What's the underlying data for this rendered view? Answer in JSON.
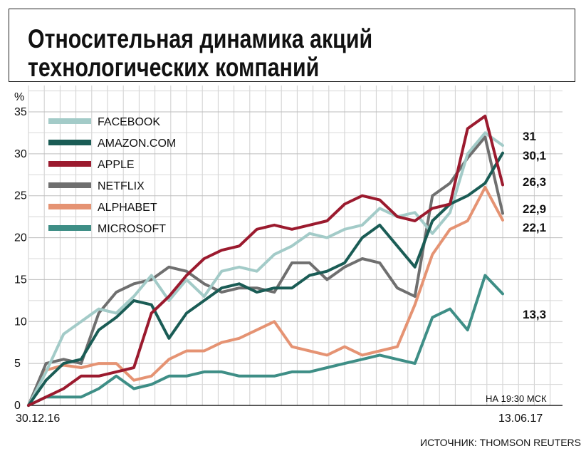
{
  "chart_data": {
    "type": "line",
    "title": "Относительная динамика акций\nтехнологических компаний",
    "ylabel": "%",
    "ylim": [
      0,
      35
    ],
    "yticks": [
      0,
      5,
      10,
      15,
      20,
      25,
      30,
      35
    ],
    "x_start_label": "30.12.16",
    "x_end_label": "13.06.17",
    "time_note": "НА 19:30 МСК",
    "source": "ИСТОЧНИК: THOMSON REUTERS",
    "grid": true,
    "legend_position": "top-left",
    "points_per_series": 28,
    "series": [
      {
        "name": "FACEBOOK",
        "color": "#a3cbc8",
        "end_label": "31",
        "values": [
          0,
          4,
          8.5,
          10,
          11.5,
          11,
          13,
          15.5,
          12.5,
          15,
          13,
          16,
          16.5,
          16,
          18,
          19,
          20.5,
          20,
          21,
          21.5,
          23.5,
          22.5,
          23,
          20.5,
          23,
          30,
          32.5,
          31
        ]
      },
      {
        "name": "AMAZON.COM",
        "color": "#1a5c55",
        "end_label": "30,1",
        "values": [
          0,
          3,
          5,
          5.5,
          9,
          10.5,
          12.5,
          12,
          8,
          11,
          12.5,
          14,
          14.5,
          13.5,
          14,
          14,
          15.5,
          16,
          17,
          20,
          21.5,
          19,
          16.5,
          22,
          24,
          25,
          26.5,
          30.1
        ]
      },
      {
        "name": "APPLE",
        "color": "#9b1a2e",
        "end_label": "26,3",
        "values": [
          0,
          1,
          2,
          3.5,
          3.5,
          4,
          4.5,
          11,
          13,
          15.5,
          17.5,
          18.5,
          19,
          21,
          21.5,
          21,
          21.5,
          22,
          24,
          25,
          24.5,
          22.5,
          22,
          23.5,
          24,
          33,
          34.5,
          26.3
        ]
      },
      {
        "name": "NETFLIX",
        "color": "#6f6f6f",
        "end_label": "22,9",
        "values": [
          0,
          5,
          5.5,
          5,
          11,
          13.5,
          14.5,
          15,
          16.5,
          16,
          14.5,
          13.5,
          14,
          14,
          13.5,
          17,
          17,
          15,
          16.5,
          17.5,
          17,
          14,
          13,
          25,
          26.5,
          29.5,
          32,
          22.9
        ]
      },
      {
        "name": "ALPHABET",
        "color": "#e59373",
        "end_label": "22,1",
        "values": [
          0,
          4.2,
          4.8,
          4.5,
          5,
          5,
          3,
          3.5,
          5.5,
          6.5,
          6.5,
          7.5,
          8,
          9,
          10,
          7,
          6.5,
          6,
          7,
          6,
          6.5,
          7,
          12,
          18,
          21,
          22,
          26,
          22.1
        ]
      },
      {
        "name": "MICROSOFT",
        "color": "#3e8e86",
        "end_label": "13,3",
        "values": [
          0,
          1,
          1,
          1,
          2,
          3.5,
          2,
          2.5,
          3.5,
          3.5,
          4,
          4,
          3.5,
          3.5,
          3.5,
          4,
          4,
          4.5,
          5,
          5.5,
          6,
          5.5,
          5,
          10.5,
          11.5,
          9,
          15.5,
          13.3
        ]
      }
    ]
  }
}
